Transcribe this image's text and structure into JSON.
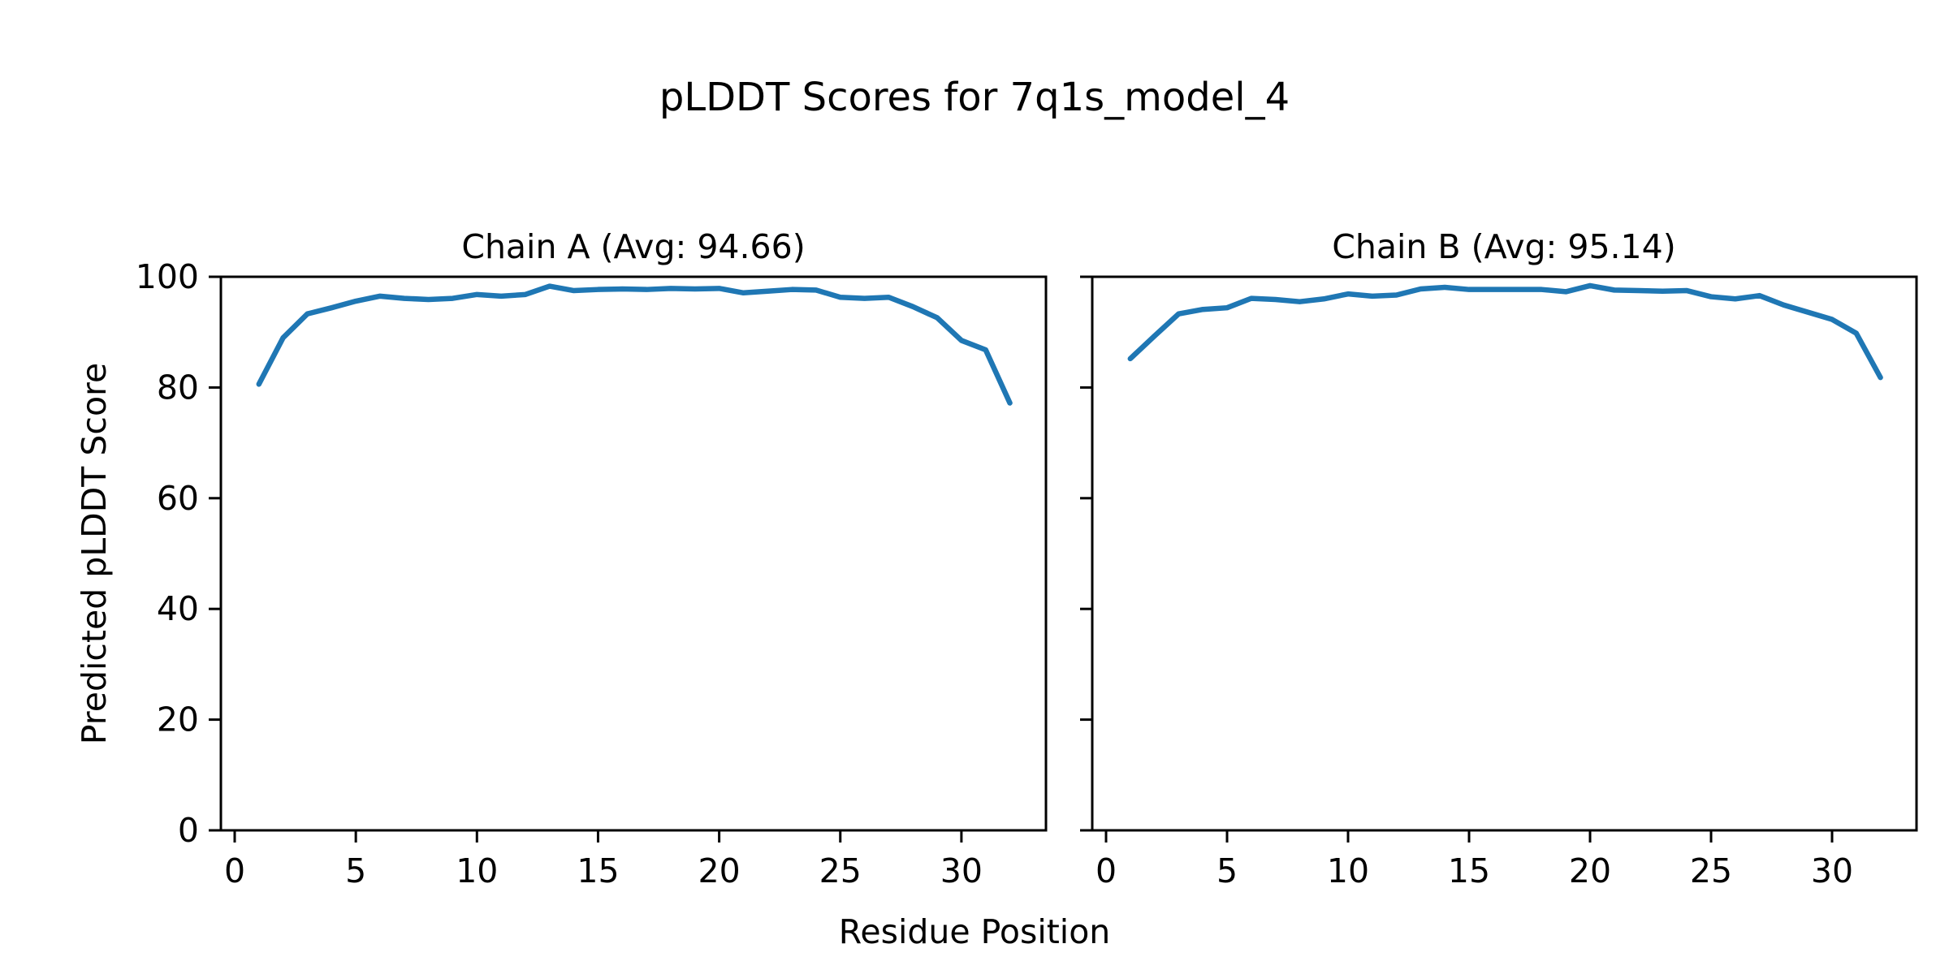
{
  "figure": {
    "title": "pLDDT Scores for 7q1s_model_4",
    "xlabel": "Residue Position",
    "ylabel": "Predicted pLDDT Score",
    "background": "#ffffff",
    "text_color": "#000000"
  },
  "chart_data": [
    {
      "type": "line",
      "title": "Chain A (Avg: 94.66)",
      "series_name": "Chain A",
      "avg": 94.66,
      "xlabel": "Residue Position",
      "ylabel": "Predicted pLDDT Score",
      "xlim": [
        -0.57,
        33.49
      ],
      "ylim": [
        0,
        100
      ],
      "x_ticks": [
        0,
        5,
        10,
        15,
        20,
        25,
        30
      ],
      "y_ticks": [
        0,
        20,
        40,
        60,
        80,
        100
      ],
      "y_tick_labels_visible": true,
      "grid": false,
      "legend": "none",
      "line_color": "#1f77b4",
      "x": [
        1,
        2,
        3,
        4,
        5,
        6,
        7,
        8,
        9,
        10,
        11,
        12,
        13,
        14,
        15,
        16,
        17,
        18,
        19,
        20,
        21,
        22,
        23,
        24,
        25,
        26,
        27,
        28,
        29,
        30,
        31,
        32
      ],
      "values": [
        80.6,
        89.0,
        93.3,
        94.4,
        95.6,
        96.5,
        96.1,
        95.9,
        96.1,
        96.8,
        96.5,
        96.8,
        98.3,
        97.5,
        97.7,
        97.8,
        97.7,
        97.9,
        97.8,
        97.9,
        97.1,
        97.4,
        97.7,
        97.6,
        96.3,
        96.1,
        96.3,
        94.6,
        92.6,
        88.5,
        86.8,
        77.2
      ]
    },
    {
      "type": "line",
      "title": "Chain B (Avg: 95.14)",
      "series_name": "Chain B",
      "avg": 95.14,
      "xlabel": "Residue Position",
      "ylabel": "",
      "xlim": [
        -0.57,
        33.49
      ],
      "ylim": [
        0,
        100
      ],
      "x_ticks": [
        0,
        5,
        10,
        15,
        20,
        25,
        30
      ],
      "y_ticks": [
        0,
        20,
        40,
        60,
        80,
        100
      ],
      "y_tick_labels_visible": false,
      "grid": false,
      "legend": "none",
      "line_color": "#1f77b4",
      "x": [
        1,
        2,
        3,
        4,
        5,
        6,
        7,
        8,
        9,
        10,
        11,
        12,
        13,
        14,
        15,
        16,
        17,
        18,
        19,
        20,
        21,
        22,
        23,
        24,
        25,
        26,
        27,
        28,
        29,
        30,
        31,
        32
      ],
      "values": [
        85.2,
        89.3,
        93.3,
        94.1,
        94.4,
        96.1,
        95.9,
        95.5,
        96.0,
        96.9,
        96.5,
        96.7,
        97.8,
        98.1,
        97.7,
        97.7,
        97.7,
        97.7,
        97.3,
        98.4,
        97.6,
        97.5,
        97.4,
        97.5,
        96.4,
        96.0,
        96.6,
        94.9,
        93.6,
        92.3,
        89.8,
        81.8
      ]
    }
  ]
}
